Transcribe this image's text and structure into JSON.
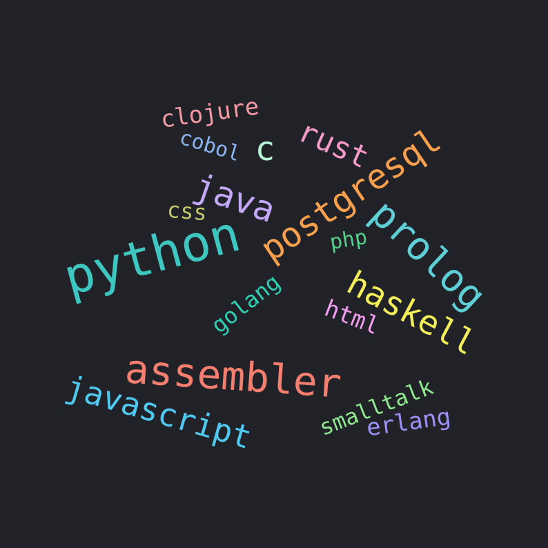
{
  "words": [
    {
      "key": "python",
      "text": "python",
      "color": "#3ec6c0"
    },
    {
      "key": "assembler",
      "text": "assembler",
      "color": "#f47e6f"
    },
    {
      "key": "javascript",
      "text": "javascript",
      "color": "#4fc9f0"
    },
    {
      "key": "postgresql",
      "text": "postgresql",
      "color": "#f6a04d"
    },
    {
      "key": "prolog",
      "text": "prolog",
      "color": "#5ecfd6"
    },
    {
      "key": "haskell",
      "text": "haskell",
      "color": "#f5ef5a"
    },
    {
      "key": "java",
      "text": "java",
      "color": "#c3a8f7"
    },
    {
      "key": "rust",
      "text": "rust",
      "color": "#f49ac8"
    },
    {
      "key": "clojure",
      "text": "clojure",
      "color": "#f59aa4"
    },
    {
      "key": "cobol",
      "text": "cobol",
      "color": "#8ab4f0"
    },
    {
      "key": "c",
      "text": "c",
      "color": "#b9f2d6"
    },
    {
      "key": "css",
      "text": "css",
      "color": "#c2c86a"
    },
    {
      "key": "php",
      "text": "php",
      "color": "#52d08a"
    },
    {
      "key": "golang",
      "text": "golang",
      "color": "#2fd1b4"
    },
    {
      "key": "html",
      "text": "html",
      "color": "#f29ef0"
    },
    {
      "key": "smalltalk",
      "text": "smalltalk",
      "color": "#8ee88e"
    },
    {
      "key": "erlang",
      "text": "erlang",
      "color": "#9c8ff5"
    }
  ]
}
